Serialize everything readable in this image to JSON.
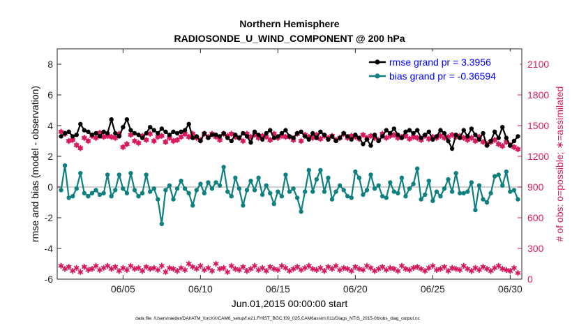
{
  "chart_data": {
    "type": "line",
    "title": "Northern Hemisphere",
    "subtitle": "RADIOSONDE_U_WIND_COMPONENT @ 200 hPa",
    "xlabel": "Jun.01,2015 00:00:00 start",
    "ylabel_left": "rmse and bias (model - observation)",
    "ylabel_right": "# of obs: o=possible; ∗=assimilated",
    "footnote": "data file: /Users/raeder/DAI/ATM_forcXX/CAM6_setup/f.e21.FHIST_BGC.f09_025.CAM6assim.011/Diags_NTrS_2015-06/obs_diag_output.nc",
    "x_range": [
      0.75,
      30.75
    ],
    "ylim_left": [
      -6,
      9
    ],
    "ylim_right": [
      0,
      2250
    ],
    "x_ticks": [
      5,
      10,
      15,
      20,
      25,
      30
    ],
    "x_tick_labels": [
      "06/05",
      "06/10",
      "06/15",
      "06/20",
      "06/25",
      "06/30"
    ],
    "y_ticks_left": [
      -6,
      -4,
      -2,
      0,
      2,
      4,
      6,
      8
    ],
    "y_ticks_right": [
      0,
      300,
      600,
      900,
      1200,
      1500,
      1800,
      2100
    ],
    "grid": false,
    "zero_line": 0,
    "legend_position": "top-right",
    "legend": [
      {
        "label": "rmse grand pr = 3.3956",
        "series": "rmse"
      },
      {
        "label": "bias grand pr = -0.36594",
        "series": "bias"
      }
    ],
    "colors": {
      "rmse": "#000000",
      "bias": "#0f7f7f",
      "obs": "#d81b60",
      "legend_text": "#0000ff",
      "zero_line": "#c0c0c0"
    },
    "x": [
      1.0,
      1.25,
      1.5,
      1.75,
      2.0,
      2.25,
      2.5,
      2.75,
      3.0,
      3.25,
      3.5,
      3.75,
      4.0,
      4.25,
      4.5,
      4.75,
      5.0,
      5.25,
      5.5,
      5.75,
      6.0,
      6.25,
      6.5,
      6.75,
      7.0,
      7.25,
      7.5,
      7.75,
      8.0,
      8.25,
      8.5,
      8.75,
      9.0,
      9.25,
      9.5,
      9.75,
      10.0,
      10.25,
      10.5,
      10.75,
      11.0,
      11.25,
      11.5,
      11.75,
      12.0,
      12.25,
      12.5,
      12.75,
      13.0,
      13.25,
      13.5,
      13.75,
      14.0,
      14.25,
      14.5,
      14.75,
      15.0,
      15.25,
      15.5,
      15.75,
      16.0,
      16.25,
      16.5,
      16.75,
      17.0,
      17.25,
      17.5,
      17.75,
      18.0,
      18.25,
      18.5,
      18.75,
      19.0,
      19.25,
      19.5,
      19.75,
      20.0,
      20.25,
      20.5,
      20.75,
      21.0,
      21.25,
      21.5,
      21.75,
      22.0,
      22.25,
      22.5,
      22.75,
      23.0,
      23.25,
      23.5,
      23.75,
      24.0,
      24.25,
      24.5,
      24.75,
      25.0,
      25.25,
      25.5,
      25.75,
      26.0,
      26.25,
      26.5,
      26.75,
      27.0,
      27.25,
      27.5,
      27.75,
      28.0,
      28.25,
      28.5,
      28.75,
      29.0,
      29.25,
      29.5,
      29.75,
      30.0,
      30.25,
      30.5
    ],
    "series": [
      {
        "name": "rmse",
        "values": [
          3.3,
          3.5,
          3.6,
          3.3,
          3.4,
          4.1,
          3.7,
          3.6,
          3.4,
          3.5,
          3.3,
          3.6,
          3.5,
          4.4,
          3.5,
          3.3,
          3.9,
          4.4,
          3.7,
          3.5,
          3.4,
          3.2,
          3.5,
          3.9,
          3.7,
          3.5,
          3.8,
          3.6,
          3.4,
          3.6,
          3.5,
          3.6,
          3.7,
          4.1,
          3.2,
          3.3,
          3.0,
          3.5,
          3.2,
          3.4,
          3.4,
          3.3,
          3.5,
          3.2,
          3.0,
          3.4,
          3.2,
          3.5,
          3.3,
          2.9,
          3.6,
          3.4,
          3.1,
          3.5,
          3.7,
          3.2,
          3.3,
          3.5,
          3.7,
          3.3,
          3.2,
          3.5,
          3.6,
          3.3,
          3.1,
          3.5,
          3.2,
          3.6,
          3.4,
          3.1,
          3.3,
          3.0,
          3.2,
          3.5,
          3.3,
          3.1,
          3.4,
          3.2,
          2.8,
          3.1,
          2.7,
          3.4,
          3.0,
          3.3,
          3.7,
          3.5,
          3.8,
          3.4,
          3.2,
          3.6,
          3.7,
          3.5,
          3.7,
          3.2,
          3.4,
          3.6,
          3.1,
          3.3,
          3.7,
          3.5,
          3.0,
          2.5,
          3.4,
          3.2,
          3.7,
          3.3,
          3.8,
          3.4,
          3.1,
          3.5,
          2.7,
          3.0,
          3.6,
          3.2,
          3.9,
          3.2,
          2.7,
          3.0,
          3.3
        ]
      },
      {
        "name": "bias",
        "values": [
          -0.2,
          1.4,
          -0.7,
          -0.6,
          -0.1,
          0.9,
          -0.4,
          -0.6,
          -0.4,
          -0.2,
          -0.5,
          -0.4,
          0.8,
          -0.6,
          -0.2,
          0.8,
          -0.1,
          -0.4,
          0.9,
          -0.2,
          -0.6,
          -0.4,
          0.8,
          -0.3,
          -0.1,
          -0.8,
          -2.4,
          -0.2,
          0.1,
          -0.8,
          -0.1,
          0.4,
          -0.1,
          -0.4,
          -1.2,
          -0.2,
          0.2,
          -0.4,
          0.3,
          -0.1,
          0.3,
          0.1,
          1.3,
          -0.3,
          -0.6,
          0.6,
          -0.1,
          -1.2,
          -0.2,
          0.4,
          -0.2,
          0.6,
          -0.5,
          0.1,
          -0.4,
          -1.1,
          -0.3,
          -0.6,
          0.8,
          -0.3,
          -0.1,
          -0.7,
          -1.6,
          -0.3,
          1.1,
          -0.3,
          0.5,
          1.1,
          -0.3,
          0.6,
          -0.8,
          -0.3,
          0.1,
          -0.2,
          -0.6,
          -0.7,
          1.0,
          0.6,
          -0.5,
          -0.2,
          0.8,
          -0.1,
          0.1,
          -0.6,
          -0.7,
          0.3,
          -0.3,
          -0.4,
          0.6,
          -0.6,
          -0.1,
          0.2,
          1.2,
          -0.8,
          -0.5,
          0.4,
          -0.9,
          -0.3,
          -0.6,
          -0.1,
          0.5,
          -0.3,
          0.9,
          -0.4,
          -0.4,
          -0.3,
          0.3,
          -1.5,
          0.1,
          -0.8,
          -1.0,
          -0.4,
          0.7,
          0.8,
          0.1,
          1.0,
          -0.3,
          -0.2,
          -0.8
        ]
      },
      {
        "name": "possible",
        "axis": "right",
        "values": [
          1440,
          1420,
          1350,
          1360,
          1310,
          1280,
          1380,
          1350,
          1400,
          1380,
          1430,
          1390,
          1400,
          1390,
          1380,
          1420,
          1290,
          1320,
          1410,
          1350,
          1330,
          1400,
          1360,
          1420,
          1350,
          1390,
          1400,
          1340,
          1380,
          1350,
          1360,
          1390,
          1420,
          1390,
          1420,
          1380,
          1360,
          1420,
          1390,
          1420,
          1390,
          1360,
          1420,
          1400,
          1420,
          1390,
          1380,
          1350,
          1420,
          1390,
          1410,
          1380,
          1400,
          1390,
          1360,
          1420,
          1380,
          1400,
          1390,
          1390,
          1360,
          1420,
          1350,
          1410,
          1390,
          1380,
          1410,
          1370,
          1400,
          1380,
          1400,
          1360,
          1380,
          1420,
          1380,
          1400,
          1390,
          1370,
          1410,
          1380,
          1400,
          1380,
          1360,
          1420,
          1380,
          1400,
          1410,
          1380,
          1390,
          1400,
          1370,
          1390,
          1380,
          1360,
          1400,
          1370,
          1390,
          1380,
          1400,
          1380,
          1390,
          1410,
          1390,
          1400,
          1380,
          1360,
          1380,
          1350,
          1390,
          1340,
          1320,
          1340,
          1360,
          1320,
          1300,
          1340,
          1310,
          1290,
          1270
        ]
      },
      {
        "name": "assimilated",
        "axis": "right",
        "values": [
          130,
          100,
          120,
          80,
          110,
          70,
          120,
          90,
          100,
          130,
          90,
          110,
          130,
          100,
          120,
          80,
          110,
          90,
          130,
          100,
          110,
          80,
          120,
          100,
          110,
          90,
          130,
          70,
          110,
          100,
          80,
          110,
          90,
          150,
          120,
          100,
          130,
          90,
          110,
          80,
          150,
          100,
          110,
          70,
          130,
          100,
          90,
          120,
          80,
          100,
          130,
          90,
          110,
          80,
          120,
          100,
          90,
          130,
          110,
          80,
          100,
          120,
          90,
          110,
          130,
          100,
          90,
          110,
          80,
          120,
          100,
          130,
          90,
          110,
          100,
          80,
          120,
          100,
          90,
          130,
          110,
          80,
          100,
          120,
          90,
          110,
          100,
          80,
          130,
          100,
          90,
          110,
          120,
          100,
          80,
          110,
          130,
          90,
          100,
          120,
          80,
          110,
          100,
          90,
          130,
          100,
          80,
          110,
          90,
          120,
          100,
          80,
          110,
          130,
          100,
          90,
          80,
          110,
          60
        ]
      }
    ]
  }
}
